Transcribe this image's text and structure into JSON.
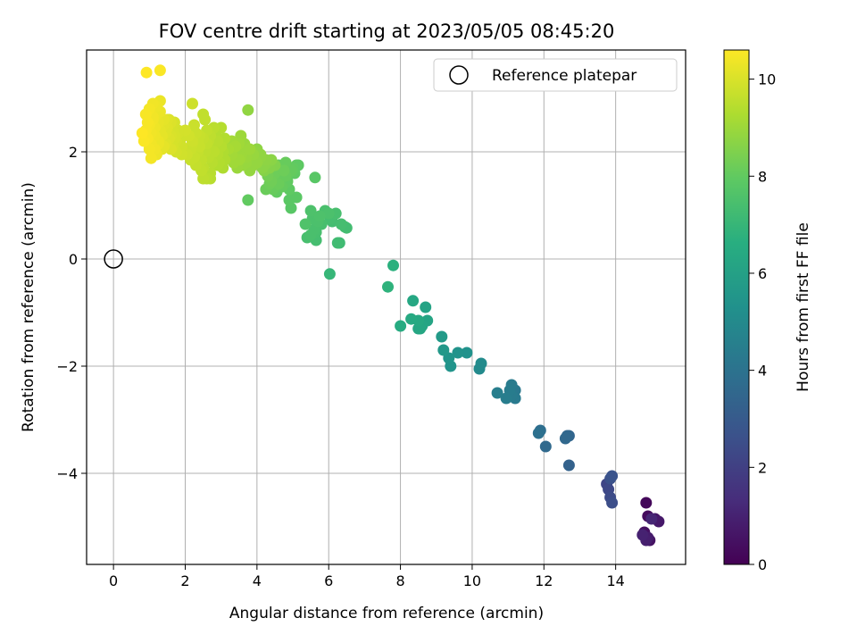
{
  "chart_data": {
    "type": "scatter",
    "title": "FOV centre drift starting at 2023/05/05 08:45:20",
    "xlabel": "Angular distance from reference (arcmin)",
    "ylabel": "Rotation from reference (arcmin)",
    "xlim": [
      -0.75,
      15.95
    ],
    "ylim": [
      -5.7,
      3.9
    ],
    "xticks": [
      0,
      2,
      4,
      6,
      8,
      10,
      12,
      14
    ],
    "yticks": [
      2,
      0,
      -2,
      -4
    ],
    "xtick_labels": [
      "0",
      "2",
      "4",
      "6",
      "8",
      "10",
      "12",
      "14"
    ],
    "ytick_labels": [
      "2",
      "0",
      "−2",
      "−4"
    ],
    "grid": true,
    "legend": {
      "placement": "top-right",
      "entries": [
        "Reference platepar"
      ]
    },
    "reference_point": {
      "x": 0,
      "y": 0
    },
    "colorbar": {
      "label": "Hours from first FF file",
      "range": [
        0,
        10.6
      ],
      "ticks": [
        0,
        2,
        4,
        6,
        8,
        10
      ],
      "tick_labels": [
        "0",
        "2",
        "4",
        "6",
        "8",
        "10"
      ],
      "colormap": "viridis"
    },
    "series": [
      {
        "x": [
          14.85,
          14.9,
          14.8,
          14.95,
          15.1,
          15.2,
          14.9,
          14.85,
          14.75,
          15.0
        ],
        "y": [
          -4.55,
          -4.8,
          -5.1,
          -5.25,
          -4.85,
          -4.9,
          -5.2,
          -5.25,
          -5.15,
          -4.85
        ],
        "c": [
          0.2,
          0.3,
          0.4,
          0.5,
          0.6,
          0.7,
          0.8,
          0.9,
          1.0,
          1.1
        ]
      },
      {
        "x": [
          13.75,
          13.8,
          13.85,
          13.9,
          13.85,
          13.9
        ],
        "y": [
          -4.2,
          -4.3,
          -4.45,
          -4.55,
          -4.1,
          -4.05
        ],
        "c": [
          2.2,
          2.3,
          2.4,
          2.5,
          2.6,
          2.7
        ]
      },
      {
        "x": [
          12.7,
          12.05,
          11.9,
          11.85,
          12.65,
          12.6,
          12.7
        ],
        "y": [
          -3.85,
          -3.5,
          -3.2,
          -3.25,
          -3.3,
          -3.35,
          -3.3
        ],
        "c": [
          3.3,
          3.6,
          3.8,
          3.9,
          3.5,
          3.55,
          3.45
        ]
      },
      {
        "x": [
          10.7,
          10.95,
          11.1,
          11.2,
          11.2,
          11.05,
          11.1
        ],
        "y": [
          -2.5,
          -2.6,
          -2.55,
          -2.6,
          -2.45,
          -2.45,
          -2.35
        ],
        "c": [
          4.5,
          4.45,
          4.35,
          4.3,
          4.25,
          4.4,
          4.35
        ]
      },
      {
        "x": [
          10.2,
          10.25,
          9.15,
          9.2,
          9.35,
          9.4,
          9.85,
          9.6
        ],
        "y": [
          -2.05,
          -1.95,
          -1.45,
          -1.7,
          -1.85,
          -2.0,
          -1.75,
          -1.75
        ],
        "c": [
          5.0,
          5.05,
          5.7,
          5.6,
          5.5,
          5.45,
          5.35,
          5.4
        ]
      },
      {
        "x": [
          7.8,
          7.65,
          8.0,
          8.35,
          8.3,
          8.5,
          8.55,
          8.6,
          8.7,
          8.75,
          8.5
        ],
        "y": [
          -0.12,
          -0.52,
          -1.25,
          -0.78,
          -1.12,
          -1.15,
          -1.3,
          -1.25,
          -0.9,
          -1.15,
          -1.3
        ],
        "c": [
          6.7,
          6.8,
          6.5,
          6.3,
          6.4,
          6.35,
          6.25,
          6.2,
          6.1,
          6.15,
          6.25
        ]
      },
      {
        "x": [
          5.35,
          5.4,
          5.5,
          5.55,
          5.6,
          5.65,
          5.7,
          5.75,
          5.8,
          5.9,
          6.0,
          6.05,
          6.1,
          6.2,
          6.25,
          6.3,
          6.35,
          6.45,
          6.5,
          6.03,
          5.62,
          5.5,
          5.65
        ],
        "y": [
          0.65,
          0.4,
          0.9,
          0.75,
          0.55,
          0.35,
          0.7,
          0.8,
          0.65,
          0.9,
          0.85,
          0.75,
          0.7,
          0.85,
          0.3,
          0.3,
          0.65,
          0.6,
          0.58,
          -0.28,
          1.52,
          0.45,
          0.5
        ],
        "c": [
          7.6,
          7.4,
          7.55,
          7.5,
          7.45,
          7.35,
          7.5,
          7.55,
          7.4,
          7.45,
          7.5,
          7.35,
          7.3,
          7.4,
          7.25,
          7.2,
          7.35,
          7.3,
          7.3,
          7.0,
          7.8,
          7.45,
          7.4
        ]
      },
      {
        "x": [
          4.3,
          4.4,
          4.5,
          4.6,
          4.65,
          4.7,
          4.75,
          4.8,
          4.85,
          4.9,
          4.95,
          5.0,
          5.05,
          5.1,
          5.15,
          4.45,
          4.55,
          4.25,
          4.35,
          4.6,
          4.8,
          5.0,
          4.9,
          3.75,
          4.7,
          4.95,
          5.1
        ],
        "y": [
          1.55,
          1.45,
          1.6,
          1.4,
          1.5,
          1.35,
          1.65,
          1.55,
          1.45,
          1.3,
          1.65,
          1.7,
          1.6,
          1.15,
          1.75,
          1.3,
          1.25,
          1.3,
          1.4,
          1.75,
          1.8,
          1.65,
          1.1,
          1.1,
          1.6,
          0.95,
          1.75
        ],
        "c": [
          8.3,
          8.25,
          8.2,
          8.15,
          8.1,
          8.05,
          8.2,
          8.1,
          8.0,
          7.95,
          8.05,
          8.0,
          7.95,
          7.85,
          7.9,
          8.1,
          8.0,
          8.15,
          8.2,
          8.05,
          8.1,
          8.0,
          7.85,
          8.0,
          8.0,
          7.8,
          7.95
        ]
      },
      {
        "x": [
          3.2,
          3.3,
          3.4,
          3.5,
          3.6,
          3.7,
          3.8,
          3.9,
          4.0,
          4.1,
          4.2,
          4.25,
          4.3,
          4.35,
          4.4,
          4.5,
          3.35,
          3.45,
          3.55,
          3.65,
          3.75,
          3.85,
          3.95,
          4.05,
          4.15,
          3.3,
          3.5,
          3.7,
          3.9,
          4.1,
          3.75,
          3.55,
          3.9,
          4.2,
          4.0,
          3.6,
          3.4,
          3.8
        ],
        "y": [
          2.05,
          1.95,
          2.1,
          1.85,
          2.0,
          1.9,
          2.05,
          1.95,
          1.8,
          1.9,
          1.75,
          1.85,
          1.8,
          1.7,
          1.85,
          1.75,
          1.8,
          1.7,
          1.9,
          2.15,
          1.95,
          1.85,
          2.0,
          1.9,
          1.7,
          2.2,
          2.15,
          1.8,
          1.9,
          1.95,
          2.78,
          2.3,
          1.75,
          1.65,
          2.05,
          1.75,
          2.0,
          1.65
        ],
        "c": [
          9.2,
          9.1,
          9.15,
          9.05,
          9.0,
          8.95,
          9.0,
          8.9,
          8.85,
          8.8,
          8.7,
          8.75,
          8.65,
          8.6,
          8.7,
          8.55,
          9.05,
          8.95,
          9.0,
          8.95,
          8.9,
          8.85,
          8.8,
          8.75,
          8.7,
          9.1,
          9.05,
          8.9,
          8.85,
          8.8,
          8.8,
          9.0,
          8.85,
          8.6,
          8.75,
          8.9,
          9.0,
          8.85
        ]
      },
      {
        "x": [
          2.0,
          2.1,
          2.2,
          2.3,
          2.4,
          2.5,
          2.6,
          2.7,
          2.8,
          2.9,
          3.0,
          3.1,
          2.05,
          2.15,
          2.25,
          2.35,
          2.45,
          2.55,
          2.65,
          2.75,
          2.85,
          2.95,
          3.05,
          2.2,
          2.4,
          2.6,
          2.8,
          3.0,
          2.3,
          2.5,
          2.7,
          2.9,
          2.15,
          2.45,
          2.75,
          3.05,
          2.25,
          2.55,
          2.85,
          2.6,
          2.7,
          2.5,
          2.35,
          2.9,
          3.1,
          2.65
        ],
        "y": [
          2.4,
          2.3,
          2.2,
          2.35,
          2.1,
          2.25,
          2.15,
          2.3,
          2.0,
          2.2,
          2.1,
          2.25,
          1.95,
          2.05,
          1.9,
          2.0,
          1.85,
          2.0,
          1.9,
          2.05,
          1.95,
          1.8,
          2.0,
          2.15,
          2.3,
          2.4,
          2.45,
          2.45,
          1.75,
          1.7,
          1.6,
          1.75,
          1.85,
          1.65,
          1.8,
          1.7,
          2.5,
          2.6,
          2.35,
          1.5,
          1.5,
          1.5,
          2.2,
          1.95,
          1.85,
          2.2
        ],
        "c": [
          9.9,
          9.85,
          9.8,
          9.75,
          9.7,
          9.65,
          9.6,
          9.55,
          9.5,
          9.45,
          9.4,
          9.35,
          9.8,
          9.75,
          9.7,
          9.65,
          9.6,
          9.55,
          9.5,
          9.45,
          9.4,
          9.35,
          9.3,
          9.75,
          9.7,
          9.6,
          9.5,
          9.4,
          9.65,
          9.55,
          9.45,
          9.35,
          9.7,
          9.6,
          9.45,
          9.3,
          9.75,
          9.6,
          9.4,
          9.5,
          9.45,
          9.55,
          9.7,
          9.4,
          9.3,
          9.55
        ]
      },
      {
        "x": [
          0.8,
          0.85,
          0.9,
          0.95,
          1.0,
          1.05,
          1.1,
          1.15,
          1.2,
          1.25,
          1.3,
          1.35,
          1.4,
          1.45,
          1.5,
          1.55,
          1.6,
          1.65,
          1.7,
          1.75,
          1.8,
          1.85,
          1.9,
          1.95,
          0.9,
          1.0,
          1.1,
          1.2,
          1.3,
          1.4,
          1.5,
          1.6,
          1.7,
          1.8,
          1.05,
          1.15,
          1.25,
          1.35,
          1.45,
          1.55,
          1.65,
          1.75,
          1.85,
          1.95,
          1.0,
          1.2,
          1.4,
          1.6,
          0.95,
          1.1,
          1.3,
          1.5,
          1.7,
          1.9,
          2.2,
          2.5,
          0.92,
          1.3,
          1.05,
          1.15,
          1.25
        ],
        "y": [
          2.35,
          2.2,
          2.4,
          2.25,
          2.5,
          2.35,
          2.6,
          2.45,
          2.7,
          2.55,
          2.4,
          2.3,
          2.5,
          2.35,
          2.45,
          2.6,
          2.3,
          2.4,
          2.55,
          2.2,
          2.35,
          2.25,
          2.1,
          2.3,
          2.7,
          2.8,
          2.65,
          2.85,
          2.75,
          2.6,
          2.45,
          2.55,
          2.25,
          2.4,
          2.15,
          2.3,
          2.2,
          2.05,
          2.15,
          2.25,
          2.1,
          2.0,
          2.2,
          2.0,
          2.05,
          1.95,
          2.1,
          2.05,
          2.55,
          2.9,
          2.95,
          2.6,
          2.3,
          1.95,
          2.9,
          2.7,
          3.48,
          3.52,
          1.88,
          2.05,
          2.15
        ],
        "c": [
          10.6,
          10.55,
          10.5,
          10.5,
          10.45,
          10.4,
          10.4,
          10.35,
          10.3,
          10.25,
          10.2,
          10.2,
          10.15,
          10.1,
          10.05,
          10.0,
          10.0,
          9.95,
          9.95,
          9.9,
          9.9,
          9.85,
          9.85,
          9.8,
          10.5,
          10.45,
          10.4,
          10.35,
          10.3,
          10.2,
          10.1,
          10.05,
          9.95,
          9.9,
          10.4,
          10.35,
          10.3,
          10.2,
          10.1,
          10.05,
          9.95,
          9.9,
          9.85,
          9.8,
          10.45,
          10.35,
          10.2,
          10.05,
          10.5,
          10.4,
          10.3,
          10.1,
          9.95,
          9.85,
          9.8,
          9.6,
          10.6,
          10.55,
          10.45,
          10.4,
          10.3
        ]
      }
    ]
  }
}
